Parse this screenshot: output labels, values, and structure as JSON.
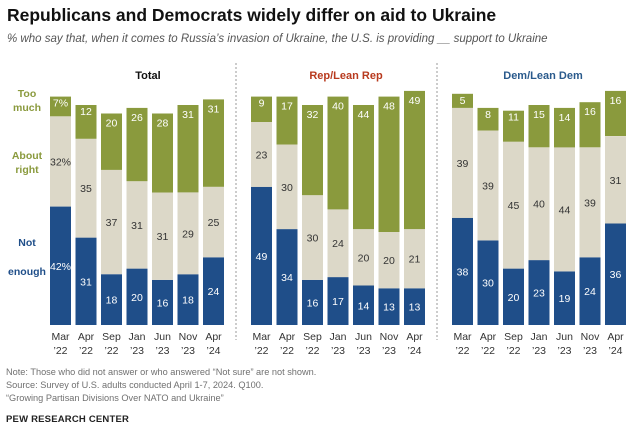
{
  "header": {
    "title": "Republicans and Democrats widely differ on aid to Ukraine",
    "subtitle": "% who say that, when it comes to Russia’s invasion of Ukraine, the U.S. is providing __ support to Ukraine"
  },
  "chart_data": {
    "type": "bar",
    "stacked": true,
    "x_months": [
      "Mar",
      "Apr",
      "Sep",
      "Jan",
      "Jun",
      "Nov",
      "Apr"
    ],
    "x_years": [
      "’22",
      "’22",
      "’22",
      "’23",
      "’23",
      "’23",
      "’24"
    ],
    "series_names": [
      "Not enough",
      "About right",
      "Too much"
    ],
    "series_label_lines": [
      [
        "Not",
        "enough"
      ],
      [
        "About",
        "right"
      ],
      [
        "Too",
        "much"
      ]
    ],
    "series_colors": [
      "#1f4e89",
      "#dcd8c8",
      "#8a9a3d"
    ],
    "panels": [
      {
        "title": "Total",
        "title_color": "#111111",
        "not_enough": [
          42,
          31,
          18,
          20,
          16,
          18,
          24
        ],
        "about_right": [
          32,
          35,
          37,
          31,
          31,
          29,
          25
        ],
        "too_much": [
          7,
          12,
          20,
          26,
          28,
          31,
          31
        ],
        "labels": {
          "not_enough": [
            "42%",
            "31",
            "18",
            "20",
            "16",
            "18",
            "24"
          ],
          "about_right": [
            "32%",
            "35",
            "37",
            "31",
            "31",
            "29",
            "25"
          ],
          "too_much": [
            "7%",
            "12",
            "20",
            "26",
            "28",
            "31",
            "31"
          ]
        }
      },
      {
        "title": "Rep/Lean Rep",
        "title_color": "#b83a1e",
        "not_enough": [
          49,
          34,
          16,
          17,
          14,
          13,
          13
        ],
        "about_right": [
          23,
          30,
          30,
          24,
          20,
          20,
          21
        ],
        "too_much": [
          9,
          17,
          32,
          40,
          44,
          48,
          49
        ],
        "labels": {
          "not_enough": [
            "49",
            "34",
            "16",
            "17",
            "14",
            "13",
            "13"
          ],
          "about_right": [
            "23",
            "30",
            "30",
            "24",
            "20",
            "20",
            "21"
          ],
          "too_much": [
            "9",
            "17",
            "32",
            "40",
            "44",
            "48",
            "49"
          ]
        }
      },
      {
        "title": "Dem/Lean Dem",
        "title_color": "#2a5a8c",
        "not_enough": [
          38,
          30,
          20,
          23,
          19,
          24,
          36
        ],
        "about_right": [
          39,
          39,
          45,
          40,
          44,
          39,
          31
        ],
        "too_much": [
          5,
          8,
          11,
          15,
          14,
          16,
          16
        ],
        "labels": {
          "not_enough": [
            "38",
            "30",
            "20",
            "23",
            "19",
            "24",
            "36"
          ],
          "about_right": [
            "39",
            "39",
            "45",
            "40",
            "44",
            "39",
            "31"
          ],
          "too_much": [
            "5",
            "8",
            "11",
            "15",
            "14",
            "16",
            "16"
          ]
        }
      }
    ],
    "ylim": [
      0,
      100
    ]
  },
  "footer": {
    "note": "Note: Those who did not answer or who answered “Not sure” are not shown.",
    "source": "Source: Survey of U.S. adults conducted April 1-7, 2024. Q100.",
    "report": "“Growing Partisan Divisions Over NATO and Ukraine”",
    "brand": "PEW RESEARCH CENTER"
  }
}
